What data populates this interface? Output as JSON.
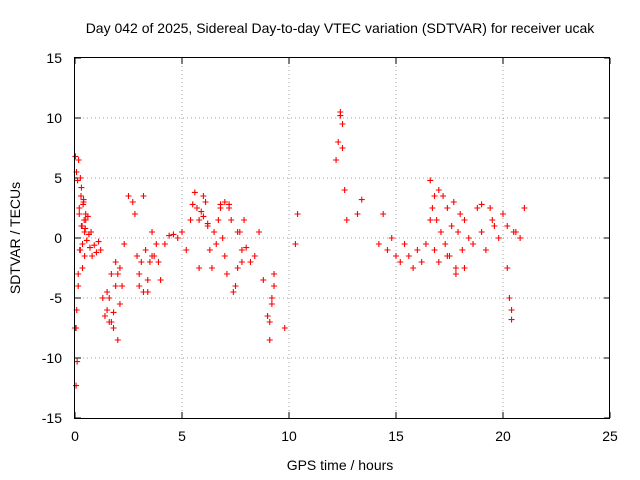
{
  "chart_data": {
    "type": "scatter",
    "title": "Day 042 of 2025, Sidereal Day-to-day VTEC variation (SDTVAR) for receiver ucak",
    "xlabel": "GPS time / hours",
    "ylabel": "SDTVAR / TECUs",
    "xlim": [
      0,
      25
    ],
    "ylim": [
      -15,
      15
    ],
    "xticks": [
      "0",
      "5",
      "10",
      "15",
      "20",
      "25"
    ],
    "yticks": [
      "-15",
      "-10",
      "-5",
      "0",
      "5",
      "10",
      "15"
    ],
    "grid": true,
    "marker": "+",
    "color": "#ff0000",
    "series": [
      {
        "name": "SDTVAR",
        "x": [
          0.0,
          0.02,
          0.05,
          0.07,
          0.1,
          0.12,
          0.15,
          0.17,
          0.2,
          0.22,
          0.25,
          0.28,
          0.3,
          0.33,
          0.35,
          0.38,
          0.4,
          0.43,
          0.45,
          0.48,
          0.5,
          0.55,
          0.6,
          0.65,
          0.7,
          0.75,
          0.8,
          0.9,
          1.0,
          1.1,
          1.2,
          1.3,
          1.4,
          1.5,
          1.6,
          1.7,
          1.8,
          1.9,
          2.0,
          2.1,
          2.2,
          2.3,
          2.5,
          2.7,
          2.8,
          2.9,
          3.0,
          3.1,
          3.2,
          3.3,
          3.4,
          3.5,
          3.6,
          3.7,
          3.8,
          3.9,
          4.0,
          4.2,
          4.4,
          4.6,
          4.8,
          5.0,
          5.2,
          5.4,
          5.5,
          5.6,
          5.7,
          5.8,
          5.9,
          6.0,
          6.1,
          6.2,
          6.3,
          6.4,
          6.5,
          6.6,
          6.7,
          6.8,
          6.9,
          7.0,
          7.1,
          7.2,
          7.3,
          7.4,
          7.5,
          7.6,
          7.7,
          7.8,
          7.9,
          8.0,
          8.2,
          8.4,
          8.6,
          8.8,
          9.0,
          9.1,
          9.2,
          9.3,
          9.8,
          10.3,
          10.4,
          12.2,
          12.3,
          12.4,
          12.5,
          12.6,
          12.7,
          13.2,
          13.4,
          14.2,
          14.4,
          14.6,
          14.8,
          15.0,
          15.2,
          15.4,
          15.6,
          15.8,
          16.0,
          16.2,
          16.4,
          16.6,
          16.7,
          16.8,
          16.9,
          17.0,
          17.1,
          17.2,
          17.3,
          17.4,
          17.5,
          17.6,
          17.7,
          17.8,
          17.9,
          18.0,
          18.1,
          18.2,
          18.4,
          18.6,
          18.8,
          19.0,
          19.2,
          19.4,
          19.6,
          19.8,
          20.0,
          20.2,
          20.3,
          20.4,
          20.5,
          20.6,
          20.8,
          21.0,
          0.05,
          0.08,
          0.15,
          0.2,
          0.25,
          0.3,
          0.35,
          0.4,
          0.45,
          0.5,
          1.5,
          1.6,
          1.7,
          1.8,
          1.9,
          2.0,
          2.1,
          3.0,
          3.2,
          3.4,
          3.6,
          5.8,
          6.0,
          6.2,
          6.8,
          7.0,
          7.2,
          7.6,
          7.8,
          9.1,
          9.2,
          9.3,
          12.4,
          12.5,
          16.6,
          16.8,
          17.0,
          17.4,
          17.8,
          18.2,
          19.0,
          19.5,
          20.2,
          20.4
        ],
        "y": [
          -7.5,
          6.8,
          -12.3,
          5.5,
          -10.3,
          4.8,
          -3.0,
          6.5,
          2.0,
          -1.0,
          5.0,
          3.5,
          4.2,
          1.0,
          -0.5,
          2.8,
          3.2,
          1.5,
          0.5,
          0.8,
          1.5,
          -0.2,
          1.8,
          0.3,
          -0.8,
          0.5,
          -1.5,
          -0.6,
          -1.2,
          -0.3,
          -1.0,
          -5.0,
          -6.5,
          -4.5,
          -7.0,
          -3.0,
          -7.5,
          -2.0,
          -8.5,
          -2.5,
          -4.0,
          -0.5,
          3.5,
          3.0,
          2.0,
          -1.5,
          -3.0,
          -2.0,
          -4.5,
          -1.0,
          -3.5,
          -2.0,
          0.5,
          -1.5,
          -0.5,
          -2.0,
          -3.5,
          -0.5,
          0.2,
          0.3,
          0.0,
          0.5,
          -1.0,
          1.5,
          2.8,
          3.8,
          2.5,
          1.5,
          2.2,
          1.8,
          3.0,
          1.0,
          -1.0,
          -2.5,
          0.5,
          -0.5,
          1.5,
          2.5,
          0.0,
          -1.5,
          -3.0,
          2.8,
          1.5,
          -4.5,
          -4.0,
          -2.5,
          0.5,
          -1.0,
          1.5,
          -0.8,
          -2.0,
          -1.5,
          0.5,
          -3.5,
          -6.5,
          -8.5,
          -5.0,
          -3.0,
          -7.5,
          -0.5,
          2.0,
          6.5,
          8.0,
          10.5,
          9.5,
          4.0,
          1.5,
          2.0,
          3.2,
          -0.5,
          2.0,
          -1.0,
          0.0,
          -1.5,
          -2.0,
          -0.5,
          -1.5,
          -2.5,
          -1.0,
          -2.0,
          -0.5,
          4.8,
          2.5,
          -1.0,
          1.5,
          -2.0,
          0.5,
          3.5,
          -0.5,
          2.5,
          -1.5,
          1.0,
          3.0,
          -2.5,
          0.5,
          2.0,
          -1.0,
          1.5,
          0.0,
          -0.5,
          2.5,
          0.5,
          -1.0,
          2.5,
          1.0,
          0.0,
          2.0,
          -2.5,
          -5.0,
          -6.8,
          0.5,
          0.5,
          0.0,
          2.5,
          -7.5,
          -6.0,
          -4.0,
          2.5,
          -1.0,
          1.0,
          -2.5,
          3.0,
          -1.5,
          2.0,
          -6.0,
          -5.0,
          -7.0,
          -6.2,
          -4.0,
          -3.0,
          -5.5,
          -4.0,
          3.5,
          -4.5,
          -1.5,
          -2.5,
          3.5,
          1.2,
          2.8,
          3.0,
          2.5,
          0.5,
          -2.0,
          -7.0,
          -5.5,
          -4.0,
          10.2,
          7.5,
          1.5,
          3.5,
          4.0,
          -1.5,
          -3.0,
          -2.5,
          2.8,
          1.5,
          1.0,
          -6.0
        ]
      }
    ]
  }
}
